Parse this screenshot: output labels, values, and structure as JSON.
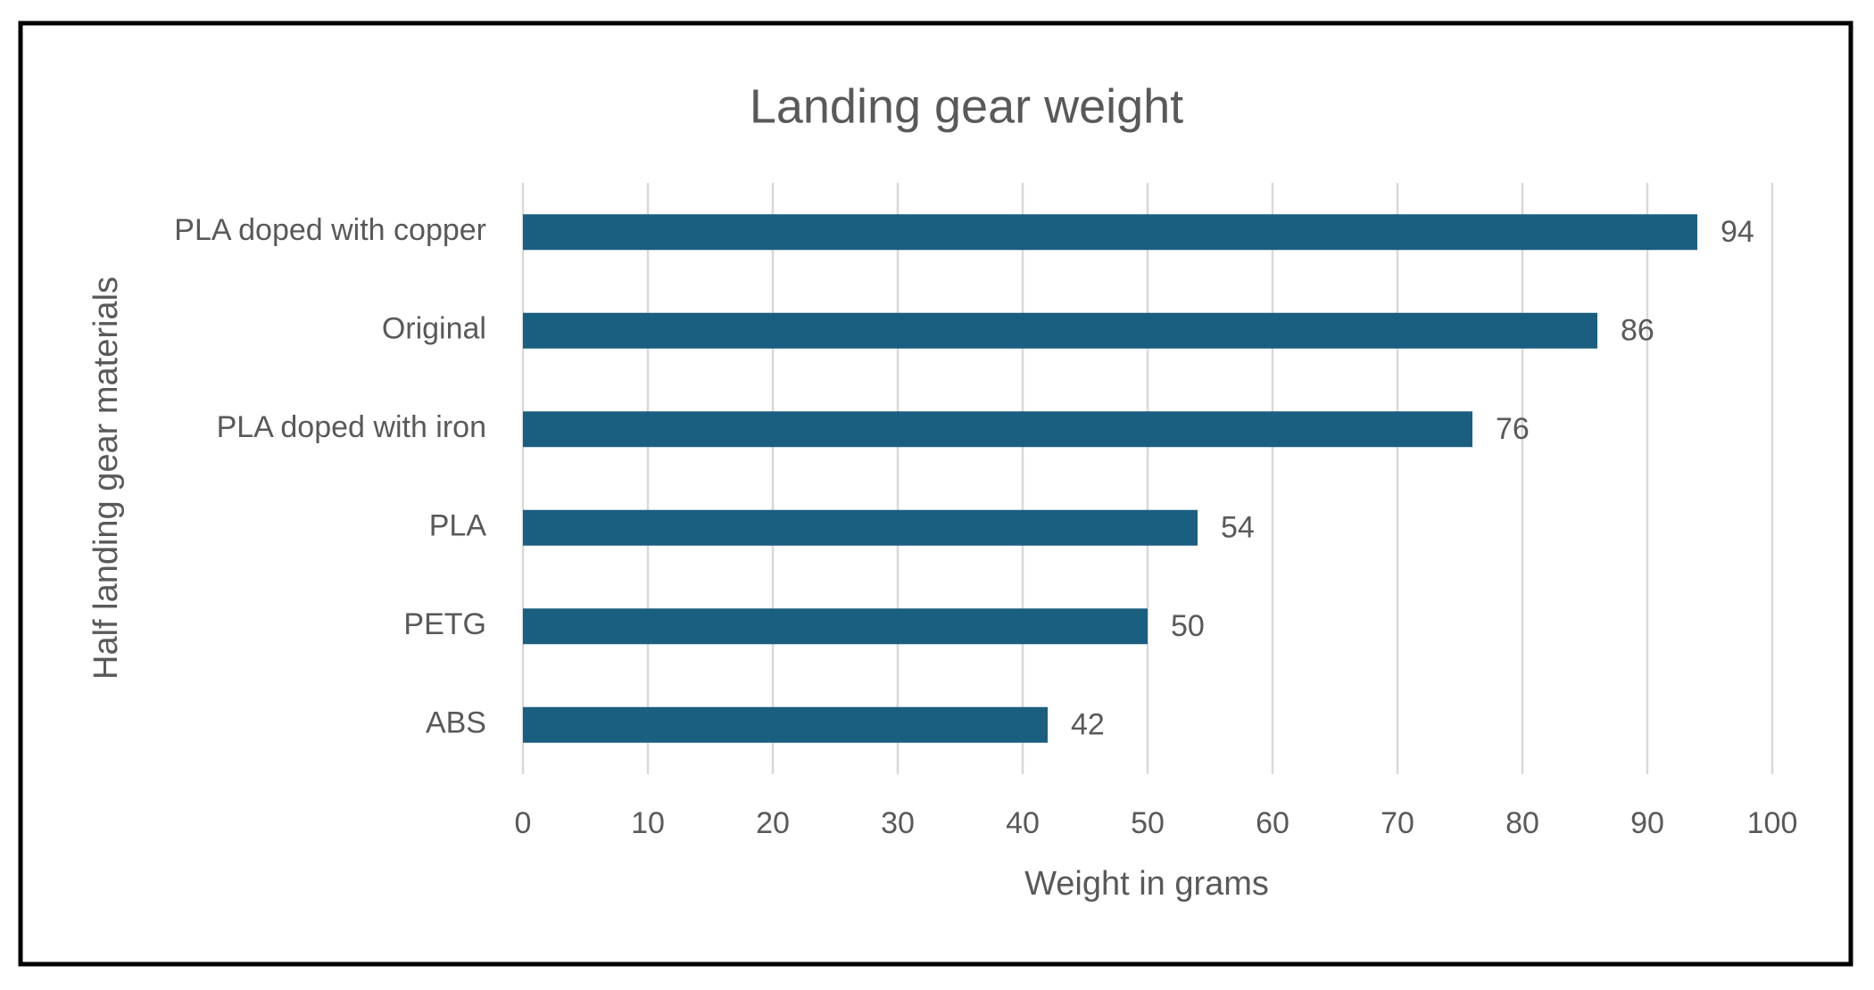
{
  "chart_data": {
    "type": "bar",
    "orientation": "horizontal",
    "title": "Landing gear weight",
    "categories": [
      "PLA doped with copper",
      "Original",
      "PLA doped with iron",
      "PLA",
      "PETG",
      "ABS"
    ],
    "values": [
      94,
      86,
      76,
      54,
      50,
      42
    ],
    "color": "#1a5e80",
    "xlabel": "Weight in grams",
    "ylabel": "Half landing gear materials",
    "xlim": [
      0,
      100
    ],
    "xticks": [
      0,
      10,
      20,
      30,
      40,
      50,
      60,
      70,
      80,
      90,
      100
    ],
    "grid": true
  }
}
